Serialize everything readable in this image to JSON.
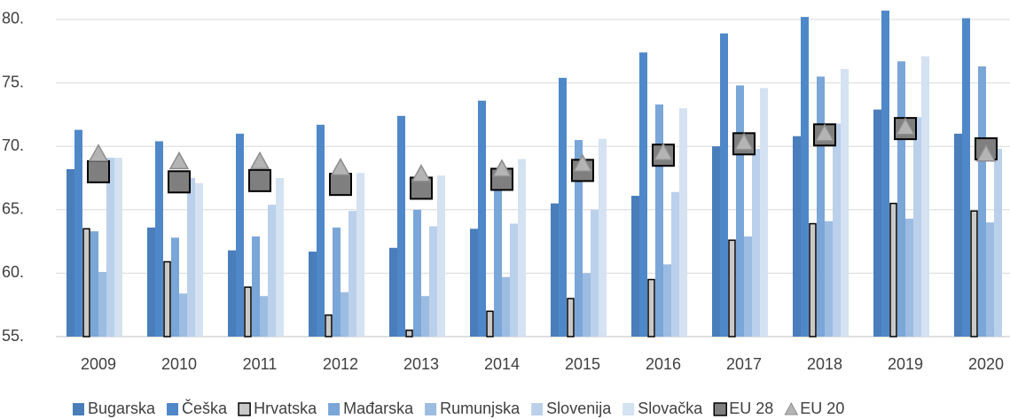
{
  "chart_data": {
    "type": "bar",
    "categories": [
      "2009",
      "2010",
      "2011",
      "2012",
      "2013",
      "2014",
      "2015",
      "2016",
      "2017",
      "2018",
      "2019",
      "2020"
    ],
    "ylim": [
      55,
      81.5
    ],
    "yticks": [
      {
        "value": 55,
        "label": "55."
      },
      {
        "value": 60,
        "label": "60."
      },
      {
        "value": 65,
        "label": "65."
      },
      {
        "value": 70,
        "label": "70."
      },
      {
        "value": 75,
        "label": "75."
      },
      {
        "value": 80,
        "label": "80."
      }
    ],
    "grid": true,
    "legend": "bottom",
    "series": [
      {
        "name": "Bugarska",
        "color": "#4a7ebb",
        "values": [
          68.2,
          63.6,
          61.8,
          61.7,
          62.0,
          63.5,
          65.5,
          66.1,
          70.0,
          70.8,
          72.9,
          71.0
        ]
      },
      {
        "name": "Češka",
        "color": "#4f88c8",
        "values": [
          71.3,
          70.4,
          71.0,
          71.7,
          72.4,
          73.6,
          75.4,
          77.4,
          78.9,
          80.2,
          80.7,
          80.1
        ]
      },
      {
        "name": "Hrvatska",
        "color": "#c9c9c9",
        "values": [
          63.5,
          60.9,
          58.9,
          56.7,
          55.5,
          57.0,
          58.0,
          59.5,
          62.6,
          63.9,
          65.5,
          64.9
        ]
      },
      {
        "name": "Mađarska",
        "color": "#7aa6d8",
        "values": [
          63.3,
          62.8,
          62.9,
          63.6,
          65.0,
          66.7,
          70.5,
          73.3,
          74.8,
          75.5,
          76.7,
          76.3
        ]
      },
      {
        "name": "Rumunjska",
        "color": "#9dbce2",
        "values": [
          60.1,
          58.4,
          58.2,
          58.5,
          58.2,
          59.7,
          60.0,
          60.7,
          62.9,
          64.1,
          64.3,
          64.0
        ]
      },
      {
        "name": "Slovenija",
        "color": "#bbd0eb",
        "values": [
          69.1,
          67.5,
          65.4,
          64.9,
          63.7,
          63.9,
          65.0,
          66.4,
          69.8,
          71.8,
          72.3,
          69.8
        ]
      },
      {
        "name": "Slovačka",
        "color": "#d4e2f2",
        "values": [
          69.1,
          67.1,
          67.5,
          67.9,
          67.7,
          69.0,
          70.6,
          73.0,
          74.6,
          76.1,
          77.1,
          null
        ]
      },
      {
        "name": "EU 28",
        "color": "#7f7f7f",
        "marker": "square",
        "values": [
          68.0,
          67.2,
          67.3,
          67.0,
          66.7,
          67.4,
          68.1,
          69.3,
          70.2,
          70.9,
          71.4,
          69.8
        ]
      },
      {
        "name": "EU 20",
        "color": "#b4b4b4",
        "marker": "triangle",
        "values": [
          69.4,
          68.8,
          68.8,
          68.3,
          67.8,
          68.2,
          68.6,
          69.5,
          70.3,
          71.0,
          71.5,
          69.4
        ]
      }
    ]
  }
}
